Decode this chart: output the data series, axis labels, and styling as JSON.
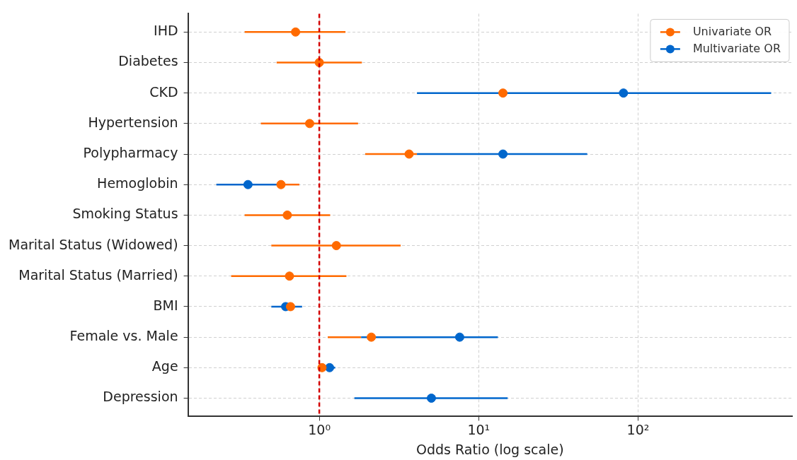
{
  "chart_data": {
    "type": "scatter",
    "orientation": "horizontal",
    "xlabel": "Odds Ratio (log scale)",
    "categories": [
      "IHD",
      "Diabetes",
      "CKD",
      "Hypertension",
      "Polypharmacy",
      "Hemoglobin",
      "Smoking Status",
      "Marital Status (Widowed)",
      "Marital Status (Married)",
      "BMI",
      "Female vs. Male",
      "Age",
      "Depression"
    ],
    "series": [
      {
        "name": "Univariate OR",
        "color": "#ff6a00",
        "values": [
          0.71,
          1.0,
          14.2,
          0.87,
          3.66,
          0.575,
          0.63,
          1.28,
          0.65,
          0.66,
          2.12,
          1.04,
          null
        ],
        "errors": [
          [
            0.34,
            1.46
          ],
          [
            0.54,
            1.85
          ],
          null,
          [
            0.43,
            1.75
          ],
          [
            1.94,
            4.1
          ],
          [
            0.55,
            0.75
          ],
          [
            0.34,
            1.17
          ],
          [
            0.5,
            3.24
          ],
          [
            0.28,
            1.48
          ],
          null,
          [
            1.13,
            1.83
          ],
          null,
          null
        ]
      },
      {
        "name": "Multivariate OR",
        "color": "#0066cc",
        "values": [
          null,
          null,
          81,
          null,
          14.2,
          0.357,
          null,
          null,
          null,
          0.615,
          7.6,
          1.16,
          5.05
        ],
        "errors": [
          null,
          null,
          [
            4.1,
            684
          ],
          null,
          [
            4.1,
            48
          ],
          [
            0.226,
            0.547
          ],
          null,
          null,
          null,
          [
            0.5,
            0.78
          ],
          [
            1.83,
            13.2
          ],
          [
            1.0,
            1.26
          ],
          [
            1.66,
            15.2
          ]
        ]
      }
    ],
    "log": "x",
    "xlim": [
      0.15,
      925
    ],
    "xticks": [
      {
        "value": 1,
        "label": "10⁰"
      },
      {
        "value": 10,
        "label": "10¹"
      },
      {
        "value": 100,
        "label": "10²"
      }
    ],
    "ref_lines": [
      {
        "axis": "x",
        "value": 1,
        "color": "#d40000",
        "line_style": "dashed"
      }
    ],
    "grid": true,
    "legend": "top right",
    "marker": "circle",
    "line_style": "solid"
  }
}
